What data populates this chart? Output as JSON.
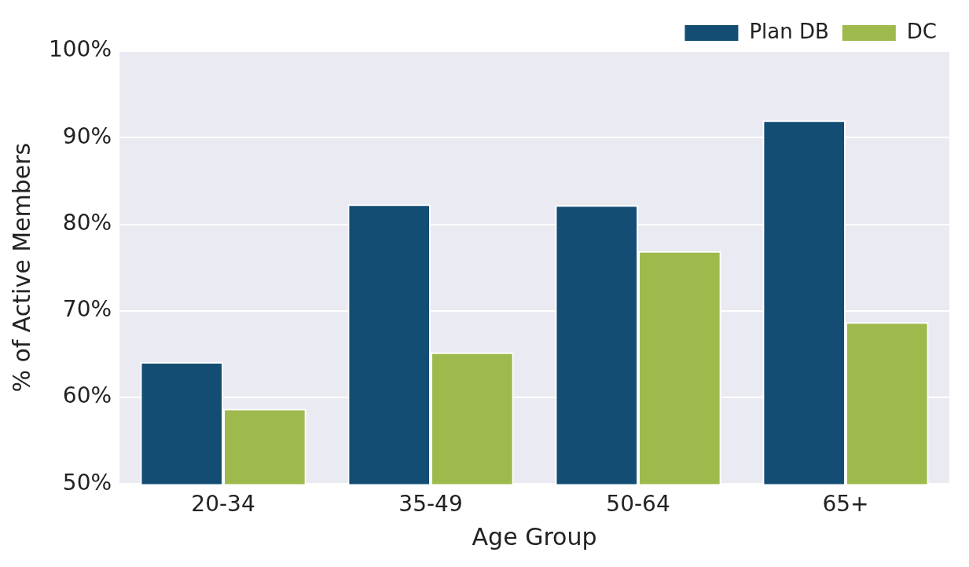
{
  "chart_data": {
    "type": "bar",
    "xlabel": "Age Group",
    "ylabel": "% of Active Members",
    "categories": [
      "20-34",
      "35-49",
      "50-64",
      "65+"
    ],
    "series": [
      {
        "name": "Plan DB",
        "color": "#134d74",
        "values": [
          64.1,
          82.3,
          82.2,
          92.0
        ]
      },
      {
        "name": "DC",
        "color": "#9fba4c",
        "values": [
          58.7,
          65.2,
          76.9,
          68.7
        ]
      }
    ],
    "ylim": [
      50,
      100
    ],
    "yticks": [
      {
        "value": 50,
        "label": "50%"
      },
      {
        "value": 60,
        "label": "60%"
      },
      {
        "value": 70,
        "label": "70%"
      },
      {
        "value": 80,
        "label": "80%"
      },
      {
        "value": 90,
        "label": "90%"
      },
      {
        "value": 100,
        "label": "100%"
      }
    ],
    "grid": "y",
    "legend": "top right"
  }
}
